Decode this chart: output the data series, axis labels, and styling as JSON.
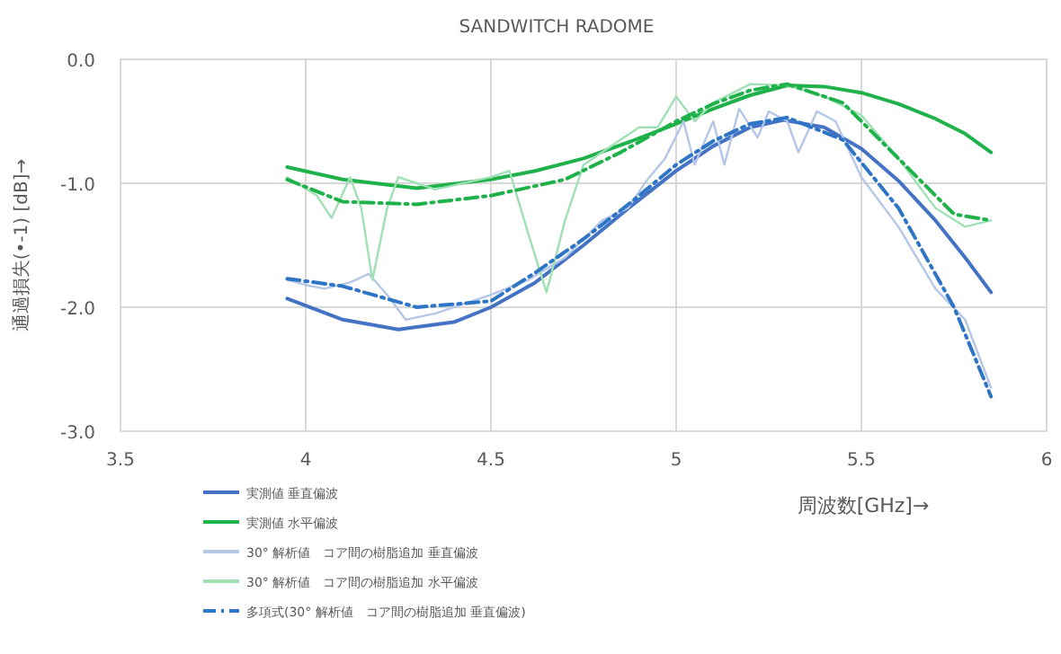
{
  "chart_data": {
    "type": "line",
    "title": "SANDWITCH RADOME",
    "xlabel": "周波数[GHz]→",
    "ylabel": "通過損失(•-1) [dB]→",
    "xlim": [
      3.5,
      6
    ],
    "xticks": [
      3.5,
      4,
      4.5,
      5,
      5.5,
      6
    ],
    "ylim": [
      -3,
      0
    ],
    "yticks": [
      {
        "value": -3,
        "label": "-3.0"
      },
      {
        "value": -2,
        "label": "-2.0"
      },
      {
        "value": -1,
        "label": "-1.0"
      },
      {
        "value": 0,
        "label": "0.0"
      }
    ],
    "grid": true,
    "legend": "bottom left",
    "marker": "none",
    "series": [
      {
        "name": "実測値 垂直偏波",
        "color": "#4472c4",
        "line_style": "solid",
        "x": [
          3.95,
          4.1,
          4.25,
          4.4,
          4.5,
          4.62,
          4.75,
          4.88,
          5.0,
          5.1,
          5.2,
          5.29,
          5.4,
          5.5,
          5.6,
          5.7,
          5.78,
          5.85
        ],
        "values": [
          -1.93,
          -2.1,
          -2.18,
          -2.12,
          -2.0,
          -1.8,
          -1.5,
          -1.18,
          -0.9,
          -0.7,
          -0.55,
          -0.49,
          -0.55,
          -0.72,
          -0.98,
          -1.3,
          -1.6,
          -1.88
        ]
      },
      {
        "name": "実測値 水平偏波",
        "color": "#1fb24a",
        "line_style": "solid",
        "x": [
          3.95,
          4.1,
          4.3,
          4.5,
          4.62,
          4.75,
          4.88,
          5.0,
          5.1,
          5.2,
          5.3,
          5.4,
          5.5,
          5.6,
          5.7,
          5.78,
          5.85
        ],
        "values": [
          -0.87,
          -0.97,
          -1.04,
          -0.97,
          -0.9,
          -0.8,
          -0.66,
          -0.52,
          -0.4,
          -0.29,
          -0.21,
          -0.22,
          -0.27,
          -0.36,
          -0.48,
          -0.6,
          -0.75
        ]
      },
      {
        "name": "30° 解析値　コア間の樹脂追加 垂直偏波",
        "color": "#b4c7e7",
        "line_style": "solid",
        "x": [
          3.95,
          4.0,
          4.05,
          4.12,
          4.17,
          4.22,
          4.27,
          4.35,
          4.5,
          4.6,
          4.7,
          4.8,
          4.87,
          4.92,
          4.97,
          5.02,
          5.05,
          5.1,
          5.13,
          5.17,
          5.22,
          5.25,
          5.3,
          5.33,
          5.38,
          5.43,
          5.5,
          5.6,
          5.7,
          5.78,
          5.85
        ],
        "values": [
          -1.78,
          -1.82,
          -1.85,
          -1.8,
          -1.73,
          -1.9,
          -2.1,
          -2.05,
          -1.9,
          -1.78,
          -1.6,
          -1.3,
          -1.2,
          -0.98,
          -0.8,
          -0.5,
          -0.85,
          -0.5,
          -0.85,
          -0.4,
          -0.63,
          -0.42,
          -0.5,
          -0.75,
          -0.42,
          -0.5,
          -0.95,
          -1.35,
          -1.85,
          -2.1,
          -2.65
        ]
      },
      {
        "name": "30° 解析値　コア間の樹脂追加 水平偏波",
        "color": "#9fe0b4",
        "line_style": "solid",
        "x": [
          3.95,
          4.03,
          4.07,
          4.12,
          4.15,
          4.18,
          4.22,
          4.25,
          4.35,
          4.5,
          4.55,
          4.6,
          4.65,
          4.7,
          4.75,
          4.85,
          4.9,
          4.95,
          5.0,
          5.05,
          5.1,
          5.2,
          5.3,
          5.4,
          5.5,
          5.6,
          5.7,
          5.78,
          5.85
        ],
        "values": [
          -0.95,
          -1.1,
          -1.28,
          -0.95,
          -1.2,
          -1.78,
          -1.2,
          -0.95,
          -1.05,
          -0.95,
          -0.9,
          -1.4,
          -1.88,
          -1.3,
          -0.85,
          -0.65,
          -0.55,
          -0.55,
          -0.3,
          -0.5,
          -0.35,
          -0.2,
          -0.21,
          -0.3,
          -0.45,
          -0.8,
          -1.2,
          -1.35,
          -1.3
        ]
      },
      {
        "name": "多項式(30° 解析値　コア間の樹脂追加 垂直偏波)",
        "color": "#2e75c6",
        "line_style": "dashdot",
        "x": [
          3.95,
          4.1,
          4.3,
          4.5,
          4.62,
          4.75,
          4.88,
          5.0,
          5.1,
          5.2,
          5.3,
          5.45,
          5.6,
          5.75,
          5.85
        ],
        "values": [
          -1.77,
          -1.83,
          -2.0,
          -1.95,
          -1.72,
          -1.45,
          -1.15,
          -0.85,
          -0.66,
          -0.52,
          -0.47,
          -0.65,
          -1.2,
          -2.0,
          -2.72
        ]
      },
      {
        "color": "#1fb24a",
        "line_style": "dashdot",
        "x": [
          3.95,
          4.1,
          4.3,
          4.5,
          4.7,
          4.85,
          5.0,
          5.1,
          5.2,
          5.3,
          5.45,
          5.6,
          5.75,
          5.85
        ],
        "values": [
          -0.97,
          -1.15,
          -1.17,
          -1.1,
          -0.97,
          -0.75,
          -0.5,
          -0.36,
          -0.25,
          -0.2,
          -0.35,
          -0.8,
          -1.25,
          -1.3
        ]
      }
    ]
  }
}
